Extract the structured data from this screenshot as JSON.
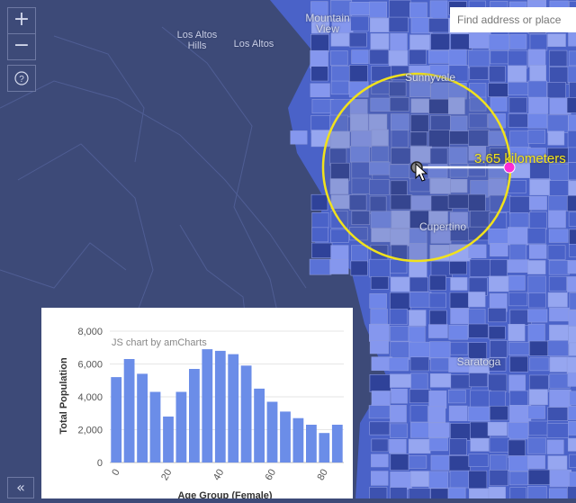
{
  "search": {
    "placeholder": "Find address or place"
  },
  "controls": {
    "zoom_in": "+",
    "zoom_out": "−",
    "help_icon": "question-circle-icon",
    "collapse": "«"
  },
  "map": {
    "labels": {
      "mountain_view": "Mountain View",
      "los_altos_hills": "Los Altos Hills",
      "los_altos": "Los Altos",
      "sunnyvale": "Sunnyvale",
      "cupertino": "Cupertino",
      "saratoga": "Saratoga"
    },
    "measurement": {
      "label": "3.65 kilometers"
    },
    "colors": {
      "background": "#3d4a78",
      "tract_light": "#6f86e8",
      "tract_dark": "#3f55b8",
      "measure_circle": "#f1e21c",
      "endpoint": "#ff2bd6"
    }
  },
  "chart_data": {
    "type": "bar",
    "credit": "JS chart by amCharts",
    "ylabel": "Total Population",
    "xlabel": "Age Group (Female)",
    "ylim": [
      0,
      8000
    ],
    "yticks": [
      "0",
      "2,000",
      "4,000",
      "6,000",
      "8,000"
    ],
    "xticks": [
      "0",
      "20",
      "40",
      "60",
      "80"
    ],
    "categories": [
      "0",
      "5",
      "10",
      "15",
      "20",
      "25",
      "30",
      "35",
      "40",
      "45",
      "50",
      "55",
      "60",
      "65",
      "70",
      "75",
      "80",
      "85"
    ],
    "values": [
      5200,
      6300,
      5400,
      4300,
      2800,
      4300,
      5700,
      6900,
      6800,
      6600,
      5900,
      4500,
      3700,
      3100,
      2700,
      2300,
      1800,
      2300
    ],
    "color": "#6b8de8"
  }
}
